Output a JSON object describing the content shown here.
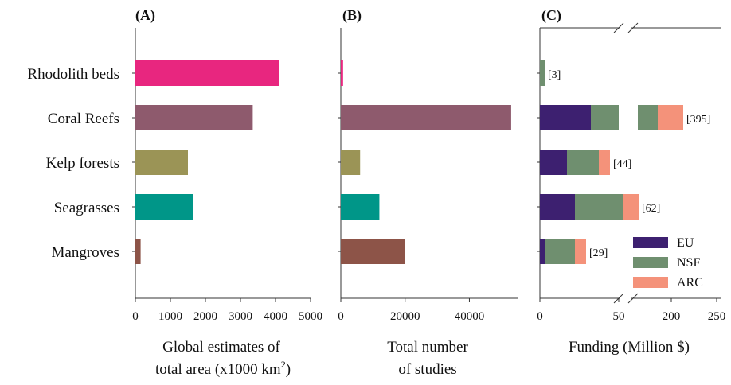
{
  "chart_data": [
    {
      "panel": "(A)",
      "type": "bar",
      "orientation": "horizontal",
      "categories": [
        "Rhodolith beds",
        "Coral Reefs",
        "Kelp forests",
        "Seagrasses",
        "Mangroves"
      ],
      "values": [
        4100,
        3350,
        1500,
        1650,
        150
      ],
      "bar_colors": [
        "#e8267f",
        "#8e5a6d",
        "#9b9456",
        "#009688",
        "#8d5448"
      ],
      "xlabel_line1": "Global estimates of",
      "xlabel_line2": "total area (x1000 km",
      "xlabel_sup": "2",
      "xlabel_end": ")",
      "xlim": [
        0,
        5000
      ],
      "xticks": [
        0,
        1000,
        2000,
        3000,
        4000,
        5000
      ]
    },
    {
      "panel": "(B)",
      "type": "bar",
      "orientation": "horizontal",
      "categories": [
        "Rhodolith beds",
        "Coral Reefs",
        "Kelp forests",
        "Seagrasses",
        "Mangroves"
      ],
      "values": [
        700,
        53000,
        6000,
        12000,
        20000
      ],
      "bar_colors": [
        "#e8267f",
        "#8e5a6d",
        "#9b9456",
        "#009688",
        "#8d5448"
      ],
      "xlabel_line1": "Total number",
      "xlabel_line2": "of studies",
      "xlim": [
        0,
        55000
      ],
      "xticks": [
        0,
        20000,
        40000
      ]
    },
    {
      "panel": "(C)",
      "type": "stacked_bar",
      "orientation": "horizontal",
      "broken_axis": true,
      "categories": [
        "Rhodolith beds",
        "Coral Reefs",
        "Kelp forests",
        "Seagrasses",
        "Mangroves"
      ],
      "xlabel": "Funding (Million $)",
      "xticks": [
        0,
        50,
        200,
        250
      ],
      "series": [
        {
          "name": "EU",
          "color": "#3d2070",
          "values": [
            0,
            197,
            17,
            22,
            3
          ]
        },
        {
          "name": "NSF",
          "color": "#6f8f6f",
          "values": [
            3,
            150,
            20,
            30,
            19
          ]
        },
        {
          "name": "ARC",
          "color": "#f4927a",
          "values": [
            0,
            48,
            7,
            10,
            7
          ]
        }
      ],
      "totals": [
        "[3]",
        "[395]",
        "[44]",
        "[62]",
        "[29]"
      ],
      "legend_position": "bottom-right"
    }
  ]
}
